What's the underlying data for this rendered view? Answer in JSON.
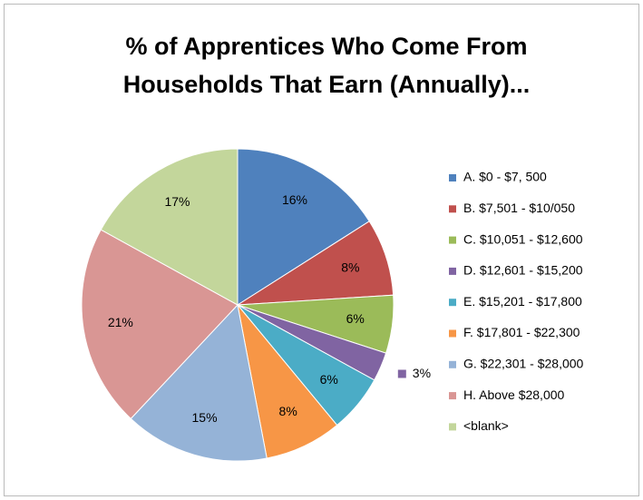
{
  "chart_data": {
    "type": "pie",
    "title": "% of Apprentices Who Come From Households That Earn (Annually)...",
    "categories": [
      "A. $0 - $7, 500",
      "B. $7,501 - $10/050",
      "C. $10,051 - $12,600",
      "D. $12,601 - $15,200",
      "E. $15,201 - $17,800",
      "F. $17,801 - $22,300",
      "G. $22,301 - $28,000",
      "H. Above $28,000",
      "<blank>"
    ],
    "values": [
      16,
      8,
      6,
      3,
      6,
      8,
      15,
      21,
      17
    ],
    "value_labels": [
      "16%",
      "8%",
      "6%",
      "3%",
      "6%",
      "8%",
      "15%",
      "21%",
      "17%"
    ],
    "colors": [
      "#4f81bd",
      "#c0504d",
      "#9bbb59",
      "#8064a2",
      "#4bacc6",
      "#f79646",
      "#95b3d7",
      "#d99694",
      "#c3d69b"
    ],
    "legend": "right"
  }
}
